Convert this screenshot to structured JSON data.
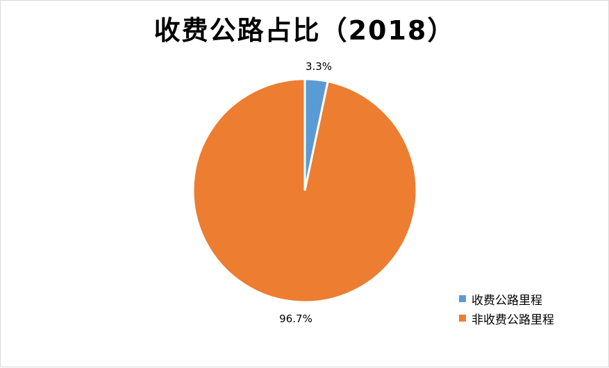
{
  "chart_data": {
    "type": "pie",
    "title": "收费公路占比（2018）",
    "categories": [
      "收费公路里程",
      "非收费公路里程"
    ],
    "values": [
      3.3,
      96.7
    ],
    "data_labels": [
      "3.3%",
      "96.7%"
    ],
    "colors": [
      "#5B9BD5",
      "#ED7D31"
    ],
    "legend_position": "bottom-right"
  }
}
